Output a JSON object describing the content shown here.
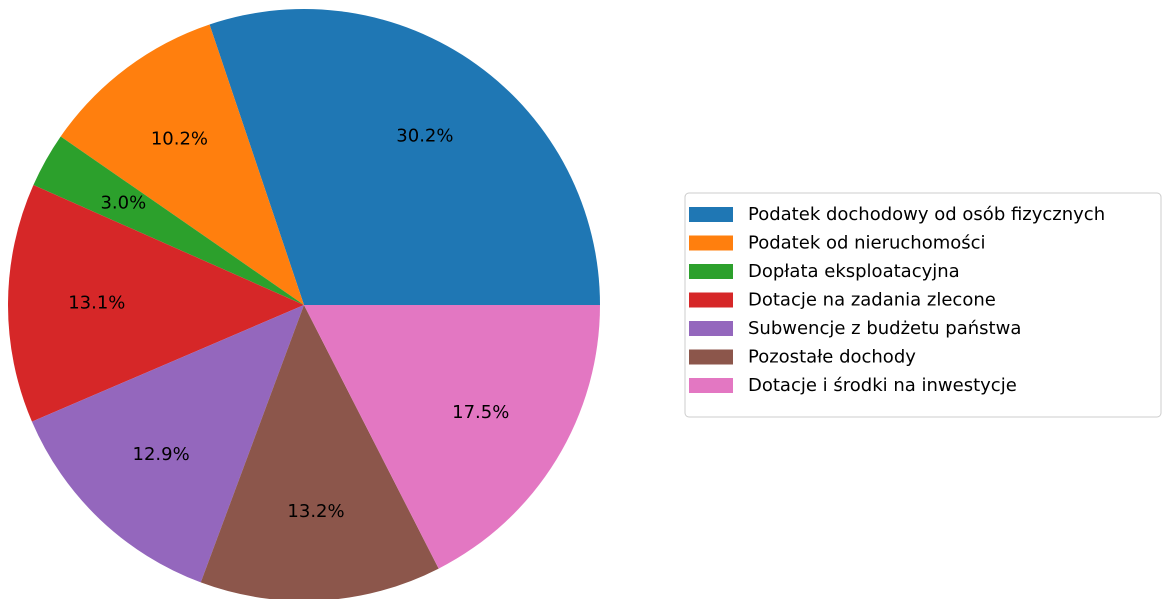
{
  "chart_data": {
    "type": "pie",
    "categories": [
      "Podatek dochodowy od osób fizycznych",
      "Podatek od nieruchomości",
      "Dopłata eksploatacyjna",
      "Dotacje na zadania zlecone",
      "Subwencje z budżetu państwa",
      "Pozostałe dochody",
      "Dotacje i środki na inwestycje"
    ],
    "values": [
      30.2,
      10.2,
      3.0,
      13.1,
      12.9,
      13.2,
      17.5
    ],
    "value_labels": [
      "30.2%",
      "10.2%",
      "3.0%",
      "13.1%",
      "12.9%",
      "13.2%",
      "17.5%"
    ],
    "colors": [
      "#1f77b4",
      "#ff7f0e",
      "#2ca02c",
      "#d62728",
      "#9467bd",
      "#8c564b",
      "#e377c2"
    ],
    "legend": "right"
  }
}
